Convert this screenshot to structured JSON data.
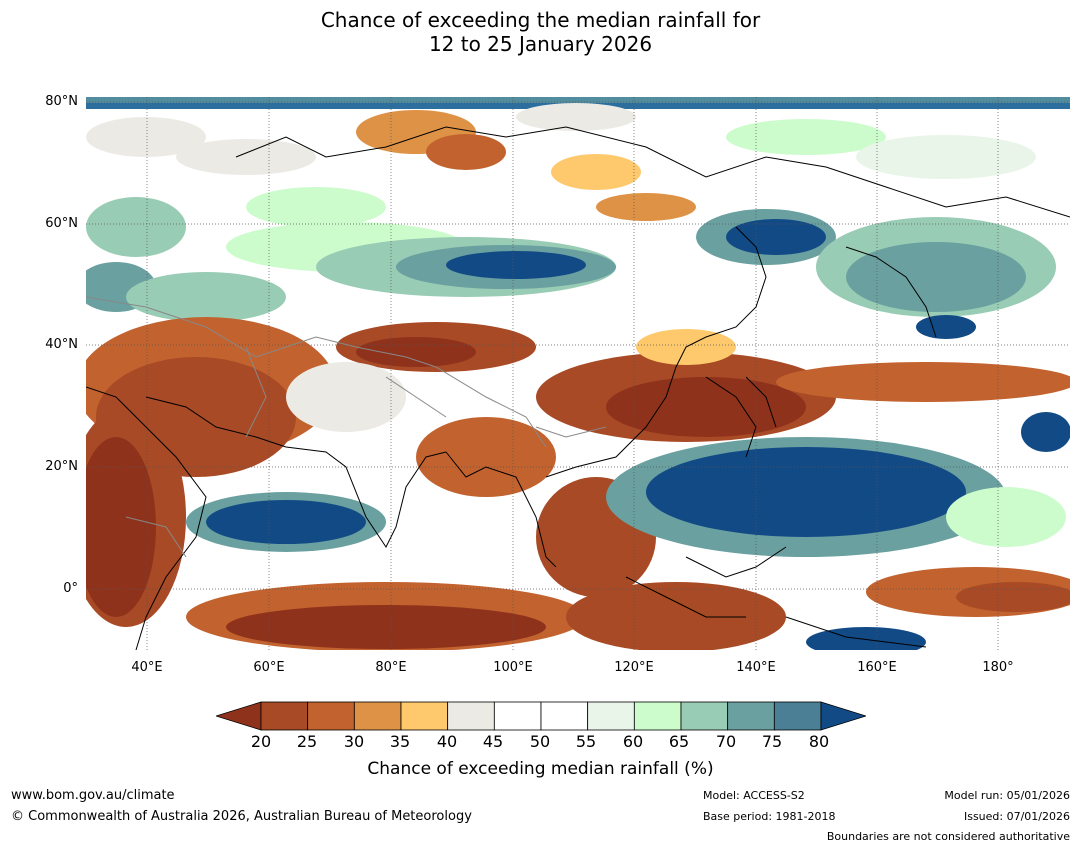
{
  "title": {
    "line1": "Chance of exceeding the median rainfall for",
    "line2": "12 to 25 January 2026"
  },
  "axes": {
    "lat_labels": [
      "80°N",
      "60°N",
      "40°N",
      "20°N",
      "0°"
    ],
    "lon_labels": [
      "40°E",
      "60°E",
      "80°E",
      "100°E",
      "120°E",
      "140°E",
      "160°E",
      "180°"
    ]
  },
  "colorbar": {
    "ticks": [
      "20",
      "25",
      "30",
      "35",
      "40",
      "45",
      "50",
      "55",
      "60",
      "65",
      "70",
      "75",
      "80"
    ],
    "label": "Chance of exceeding median rainfall (%)",
    "under_color": "#8f321c",
    "over_color": "#124a86",
    "colors": [
      "#a84a25",
      "#c2622e",
      "#de9246",
      "#fdc96c",
      "#eceae4",
      "#ffffff",
      "#ffffff",
      "#e8f5e8",
      "#ccfccc",
      "#99ccb4",
      "#6aa0a0",
      "#4a7f96"
    ]
  },
  "footer": {
    "url": "www.bom.gov.au/climate",
    "copyright": "© Commonwealth of Australia 2026, Australian Bureau of Meteorology",
    "model": "Model: ACCESS-S2",
    "base_period": "Base period: 1981-2018",
    "model_run": "Model run: 05/01/2026",
    "issued": "Issued: 07/01/2026",
    "boundaries": "Boundaries are not considered authoritative"
  }
}
